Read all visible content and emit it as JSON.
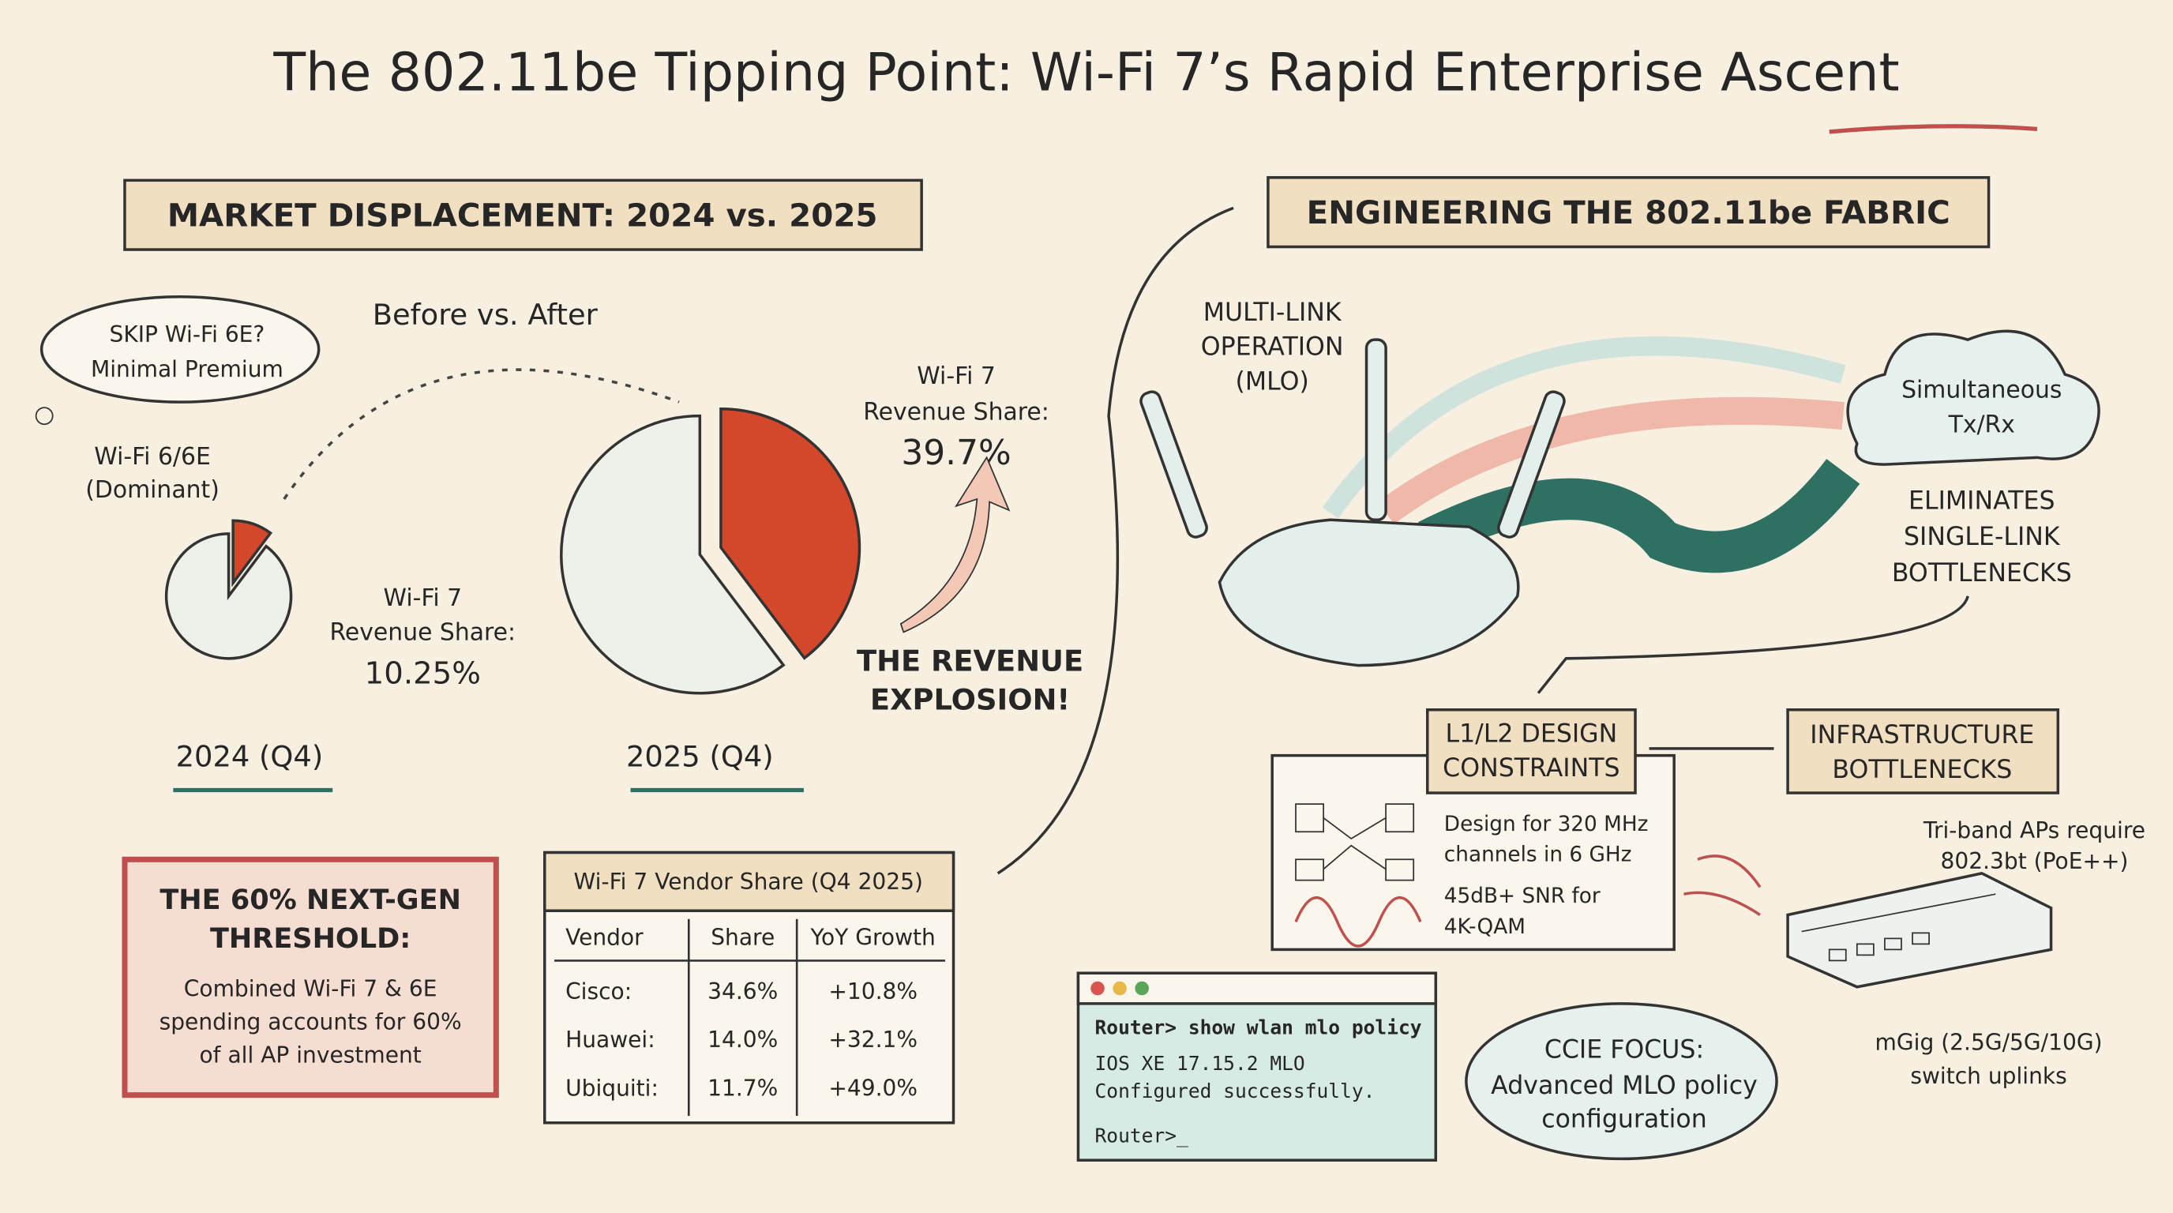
{
  "title": "The 802.11be Tipping Point: Wi-Fi 7’s Rapid Enterprise Ascent",
  "market": {
    "heading": "MARKET DISPLACEMENT: 2024 vs. 2025",
    "thought": [
      "SKIP Wi-Fi 6E?",
      "Minimal Premium"
    ],
    "before_after": "Before vs. After",
    "dominant": [
      "Wi-Fi 6/6E",
      "(Dominant)"
    ],
    "pies": [
      {
        "caption": [
          "Wi-Fi 7",
          "Revenue Share:"
        ],
        "value": 10.25,
        "value_label": "10.25%",
        "period": "2024 (Q4)"
      },
      {
        "caption": [
          "Wi-Fi 7",
          "Revenue Share:"
        ],
        "value": 39.7,
        "value_label": "39.7%",
        "period": "2025 (Q4)"
      }
    ],
    "explosion": [
      "THE REVENUE",
      "EXPLOSION!"
    ],
    "threshold": {
      "title": [
        "THE 60% NEXT-GEN",
        "THRESHOLD:"
      ],
      "body": [
        "Combined Wi-Fi 7 & 6E",
        "spending accounts for 60%",
        "of all AP investment"
      ]
    },
    "table": {
      "title": "Wi-Fi 7 Vendor Share (Q4 2025)",
      "header": [
        "Vendor",
        "Share",
        "YoY Growth"
      ],
      "rows": [
        [
          "Cisco:",
          "34.6%",
          "+10.8%"
        ],
        [
          "Huawei:",
          "14.0%",
          "+32.1%"
        ],
        [
          "Ubiquiti:",
          "11.7%",
          "+49.0%"
        ]
      ]
    }
  },
  "fabric": {
    "heading": "ENGINEERING THE 802.11be FABRIC",
    "mlo": [
      "MULTI-LINK",
      "OPERATION",
      "(MLO)"
    ],
    "cloud": [
      "Simultaneous",
      "Tx/Rx"
    ],
    "eliminates": [
      "ELIMINATES",
      "SINGLE-LINK",
      "BOTTLENECKS"
    ],
    "design": [
      "L1/L2 DESIGN",
      "CONSTRAINTS"
    ],
    "infra": [
      "INFRASTRUCTURE",
      "BOTTLENECKS"
    ],
    "constraints": [
      "Design for 320 MHz",
      "channels in 6 GHz",
      "45dB+ SNR for",
      "4K-QAM"
    ],
    "terminal": [
      "Router> show wlan mlo policy",
      "IOS XE 17.15.2 MLO",
      "Configured successfully.",
      "Router>_"
    ],
    "ccie": [
      "CCIE FOCUS:",
      "Advanced MLO policy",
      "configuration"
    ],
    "poe": [
      "Tri-band APs require",
      "802.3bt (PoE++)"
    ],
    "mgig": [
      "mGig (2.5G/5G/10G)",
      "switch uplinks"
    ]
  }
}
